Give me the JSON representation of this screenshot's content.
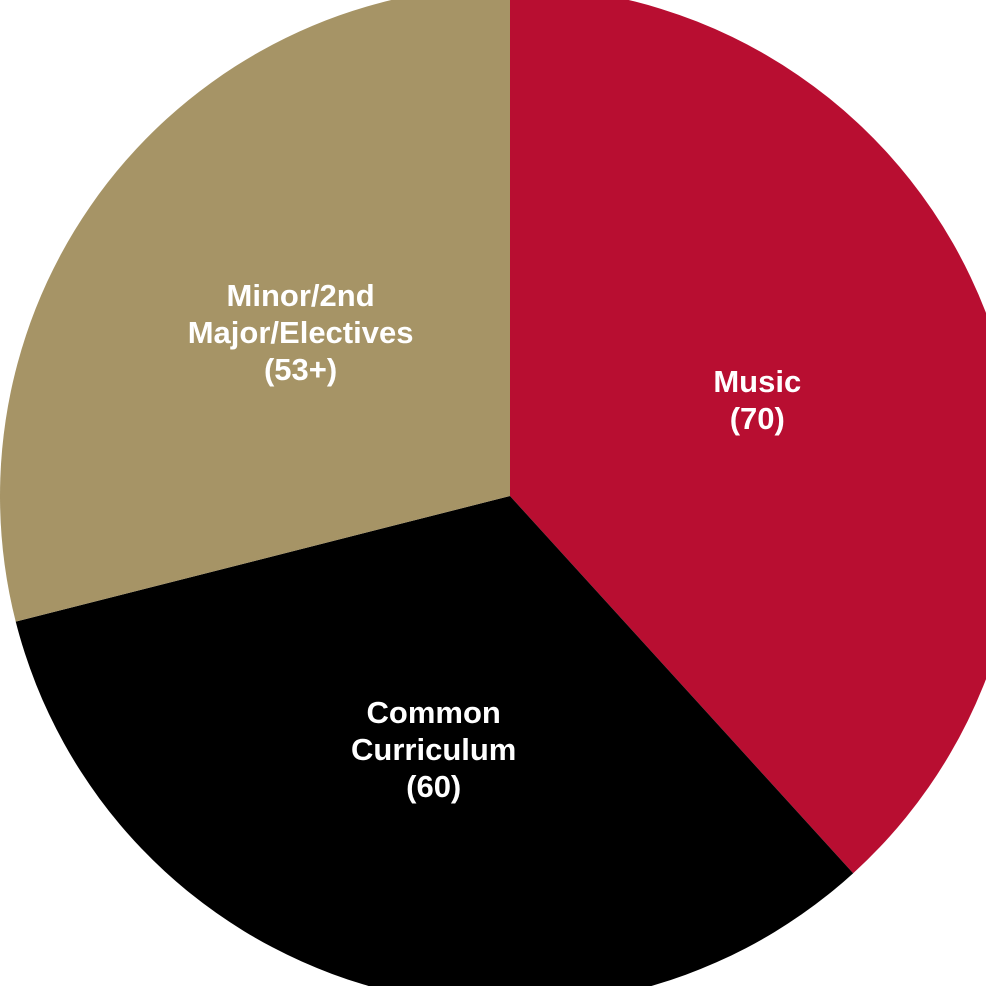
{
  "chart_data": {
    "type": "pie",
    "slices": [
      {
        "name": "Music",
        "value": 70,
        "value_label": "(70)",
        "label_lines": [
          "Music"
        ],
        "color": "#b80e31"
      },
      {
        "name": "Common Curriculum",
        "value": 60,
        "value_label": "(60)",
        "label_lines": [
          "Common",
          "Curriculum"
        ],
        "color": "#000000"
      },
      {
        "name": "Minor/2nd Major/Electives",
        "value": 53,
        "value_label": "(53+)",
        "label_lines": [
          "Minor/2nd",
          "Major/Electives"
        ],
        "color": "#a69466"
      }
    ],
    "start": "12 o'clock",
    "direction": "clockwise",
    "legend": "none"
  }
}
